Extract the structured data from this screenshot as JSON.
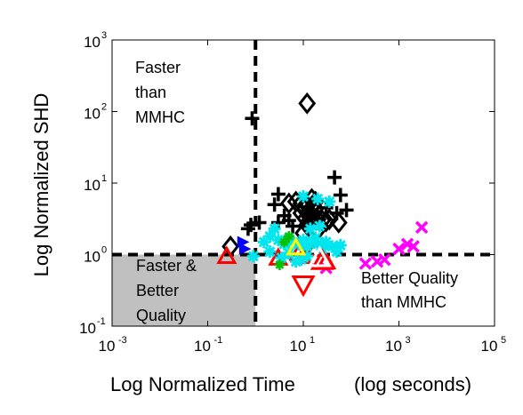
{
  "chart_data": {
    "type": "scatter",
    "title": "",
    "xlabel": "Log Normalized Time",
    "xlabel_suffix": "(log seconds)",
    "ylabel": "Log Normalized SHD",
    "x_scale": "log",
    "y_scale": "log",
    "xlim": [
      0.001,
      100000
    ],
    "ylim": [
      0.1,
      1000
    ],
    "x_ticks": [
      {
        "base": "10",
        "exp": "-3",
        "value": 0.001
      },
      {
        "base": "10",
        "exp": "-1",
        "value": 0.1
      },
      {
        "base": "10",
        "exp": "1",
        "value": 10
      },
      {
        "base": "10",
        "exp": "3",
        "value": 1000
      },
      {
        "base": "10",
        "exp": "5",
        "value": 100000
      }
    ],
    "y_ticks": [
      {
        "base": "10",
        "exp": "-1",
        "value": 0.1
      },
      {
        "base": "10",
        "exp": "0",
        "value": 1
      },
      {
        "base": "10",
        "exp": "1",
        "value": 10
      },
      {
        "base": "10",
        "exp": "2",
        "value": 100
      },
      {
        "base": "10",
        "exp": "3",
        "value": 1000
      }
    ],
    "grid": false,
    "legend": "none",
    "reference_lines": {
      "x": 1,
      "y": 1,
      "style": "dashed",
      "color": "#000000"
    },
    "shaded_region": {
      "x": [
        0.001,
        1
      ],
      "y": [
        0.1,
        1
      ],
      "color": "#c0c0c0"
    },
    "annotations": {
      "faster": [
        "Faster",
        "than",
        "MMHC"
      ],
      "both": [
        "Faster &",
        "Better",
        "Quality"
      ],
      "better": [
        "Better Quality",
        "than MMHC"
      ]
    },
    "series": [
      {
        "marker": "diamond",
        "color": "#000000",
        "points": [
          [
            12,
            130
          ],
          [
            0.3,
            1.3
          ],
          [
            5,
            5.2
          ],
          [
            7,
            5.5
          ],
          [
            9,
            5.2
          ],
          [
            10,
            4.5
          ],
          [
            12,
            4.8
          ],
          [
            13,
            3.5
          ],
          [
            15,
            4.6
          ],
          [
            18,
            4.4
          ],
          [
            9,
            3.8
          ],
          [
            11,
            3.2
          ],
          [
            14,
            2.9
          ],
          [
            16,
            3.2
          ],
          [
            20,
            3.1
          ],
          [
            25,
            3.0
          ],
          [
            30,
            2.9
          ],
          [
            35,
            3.1
          ],
          [
            12,
            2.6
          ],
          [
            20,
            2.2
          ],
          [
            10,
            2.0
          ],
          [
            55,
            2.8
          ],
          [
            15,
            6.0
          ],
          [
            18,
            5.5
          ]
        ]
      },
      {
        "marker": "plus",
        "color": "#000000",
        "points": [
          [
            0.85,
            80
          ],
          [
            45,
            12
          ],
          [
            60,
            6.8
          ],
          [
            80,
            4.2
          ],
          [
            3,
            7.0
          ],
          [
            2.5,
            5.0
          ],
          [
            4,
            3.5
          ],
          [
            5,
            3.0
          ],
          [
            3,
            2.8
          ],
          [
            1.2,
            2.8
          ],
          [
            0.8,
            2.6
          ],
          [
            0.7,
            2.3
          ],
          [
            6,
            2.5
          ],
          [
            30,
            4.5
          ],
          [
            50,
            3.8
          ]
        ]
      },
      {
        "marker": "x",
        "color": "#ff00ff",
        "points": [
          [
            350,
            0.8
          ],
          [
            500,
            0.85
          ],
          [
            1000,
            1.2
          ],
          [
            1500,
            1.4
          ],
          [
            3000,
            2.4
          ],
          [
            2000,
            1.3
          ],
          [
            30,
            0.65
          ],
          [
            200,
            0.75
          ]
        ]
      },
      {
        "marker": "triangle-up",
        "color": "#ff0000",
        "points": [
          [
            0.25,
            0.95
          ],
          [
            8,
            1.05
          ],
          [
            10,
            0.95
          ],
          [
            18,
            1.2
          ],
          [
            30,
            0.8
          ],
          [
            3,
            0.9
          ]
        ]
      },
      {
        "marker": "triangle-down",
        "color": "#ff0000",
        "points": [
          [
            10,
            0.38
          ]
        ]
      },
      {
        "marker": "star",
        "color": "#00e5ee",
        "points": [
          [
            0.9,
            0.95
          ],
          [
            1.5,
            1.5
          ],
          [
            2,
            1.8
          ],
          [
            3,
            1.6
          ],
          [
            4,
            1.4
          ],
          [
            5,
            1.7
          ],
          [
            6,
            1.5
          ],
          [
            8,
            1.4
          ],
          [
            10,
            1.6
          ],
          [
            12,
            1.3
          ],
          [
            15,
            1.5
          ],
          [
            18,
            1.7
          ],
          [
            20,
            1.4
          ],
          [
            25,
            1.2
          ],
          [
            30,
            1.5
          ],
          [
            40,
            1.3
          ],
          [
            50,
            1.1
          ],
          [
            60,
            1.35
          ],
          [
            2,
            1.1
          ],
          [
            3.5,
            0.9
          ],
          [
            5,
            1.05
          ],
          [
            7,
            0.8
          ],
          [
            9,
            0.85
          ],
          [
            12,
            0.95
          ],
          [
            20,
            6.0
          ],
          [
            10,
            6.5
          ],
          [
            35,
            5.5
          ],
          [
            14,
            2.3
          ],
          [
            22,
            2.5
          ],
          [
            2.5,
            2.3
          ]
        ]
      },
      {
        "marker": "triangle-up-open",
        "color": "#ff0000",
        "points": [
          [
            25,
            0.82
          ]
        ]
      },
      {
        "marker": "triangle-up-open",
        "color": "#ffffff",
        "points": [
          [
            22,
            0.9
          ]
        ]
      },
      {
        "marker": "asterisk",
        "color": "#00c000",
        "points": [
          [
            4,
            1.5
          ],
          [
            3.2,
            0.72
          ],
          [
            5,
            1.8
          ]
        ]
      },
      {
        "marker": "triangle-right",
        "color": "#0000ff",
        "points": [
          [
            0.55,
            1.5
          ],
          [
            0.6,
            1.2
          ]
        ]
      },
      {
        "marker": "triangle-up",
        "color": "#ffff00",
        "points": [
          [
            7,
            1.25
          ]
        ]
      }
    ]
  }
}
